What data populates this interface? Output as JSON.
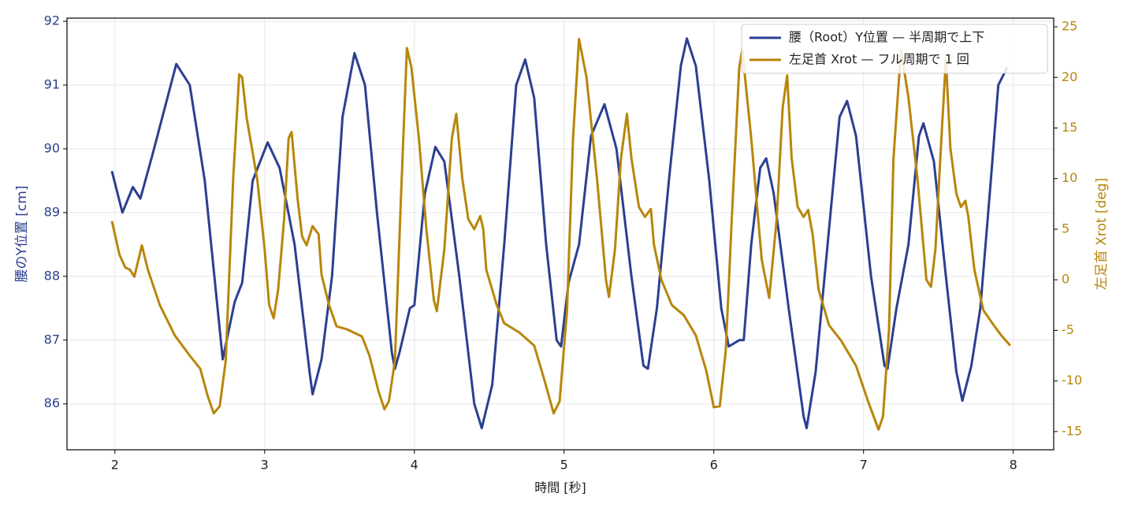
{
  "chart_data": {
    "type": "line",
    "xlabel": "時間 [秒]",
    "ylabel": "腰のY位置 [cm]",
    "y2label": "左足首 Xrot [deg]",
    "xlim": [
      1.68,
      8.27
    ],
    "xticks": [
      2,
      3,
      4,
      5,
      6,
      7,
      8
    ],
    "ylim": [
      85.28,
      92.05
    ],
    "yticks": [
      86,
      87,
      88,
      89,
      90,
      91,
      92
    ],
    "y2lim": [
      -16.8,
      25.86
    ],
    "y2ticks": [
      -15,
      -10,
      -5,
      0,
      5,
      10,
      15,
      20,
      25
    ],
    "grid": true,
    "legend": "upper right",
    "series": [
      {
        "name": "腰（Root）Y位置 — 半周期で上下",
        "color": "#2b3f91",
        "axis": "y",
        "x": [
          1.98,
          2.05,
          2.12,
          2.17,
          2.25,
          2.41,
          2.5,
          2.6,
          2.72,
          2.8,
          2.85,
          2.92,
          3.02,
          3.1,
          3.2,
          3.3,
          3.32,
          3.38,
          3.45,
          3.52,
          3.6,
          3.67,
          3.75,
          3.85,
          3.87,
          3.9,
          3.97,
          4.0,
          4.07,
          4.14,
          4.2,
          4.3,
          4.4,
          4.45,
          4.52,
          4.6,
          4.68,
          4.74,
          4.8,
          4.88,
          4.95,
          4.98,
          5.03,
          5.1,
          5.18,
          5.27,
          5.35,
          5.45,
          5.53,
          5.56,
          5.62,
          5.7,
          5.78,
          5.82,
          5.88,
          5.97,
          6.05,
          6.1,
          6.17,
          6.2,
          6.25,
          6.31,
          6.35,
          6.4,
          6.5,
          6.6,
          6.62,
          6.68,
          6.78,
          6.84,
          6.89,
          6.95,
          7.05,
          7.14,
          7.16,
          7.22,
          7.3,
          7.37,
          7.4,
          7.47,
          7.55,
          7.62,
          7.66,
          7.72,
          7.78,
          7.85,
          7.9,
          7.96
        ],
        "values": [
          89.65,
          89.0,
          89.4,
          89.22,
          89.9,
          91.33,
          91.0,
          89.5,
          86.7,
          87.6,
          87.9,
          89.5,
          90.1,
          89.7,
          88.5,
          86.5,
          86.15,
          86.7,
          88.0,
          90.5,
          91.5,
          91.0,
          89.0,
          86.8,
          86.55,
          86.8,
          87.5,
          87.55,
          89.3,
          90.03,
          89.8,
          88.0,
          86.0,
          85.62,
          86.3,
          88.5,
          91.0,
          91.4,
          90.8,
          88.5,
          87.0,
          86.9,
          87.9,
          88.5,
          90.2,
          90.7,
          90.0,
          88.0,
          86.6,
          86.55,
          87.5,
          89.5,
          91.3,
          91.73,
          91.3,
          89.5,
          87.5,
          86.9,
          87.0,
          87.0,
          88.5,
          89.7,
          89.85,
          89.3,
          87.5,
          85.8,
          85.62,
          86.5,
          89.0,
          90.5,
          90.75,
          90.2,
          88.0,
          86.6,
          86.55,
          87.5,
          88.5,
          90.2,
          90.4,
          89.8,
          88.0,
          86.5,
          86.05,
          86.6,
          87.5,
          89.5,
          91.0,
          91.28
        ]
      },
      {
        "name": "左足首 Xrot — フル周期で 1 回",
        "color": "#b8860b",
        "axis": "y2",
        "x": [
          1.98,
          2.03,
          2.07,
          2.1,
          2.13,
          2.18,
          2.22,
          2.3,
          2.4,
          2.5,
          2.57,
          2.62,
          2.66,
          2.7,
          2.74,
          2.79,
          2.83,
          2.85,
          2.88,
          2.95,
          3.0,
          3.03,
          3.06,
          3.09,
          3.13,
          3.16,
          3.18,
          3.22,
          3.25,
          3.28,
          3.32,
          3.36,
          3.38,
          3.43,
          3.48,
          3.55,
          3.65,
          3.7,
          3.76,
          3.8,
          3.83,
          3.87,
          3.91,
          3.95,
          3.98,
          4.03,
          4.08,
          4.13,
          4.15,
          4.2,
          4.25,
          4.28,
          4.32,
          4.36,
          4.4,
          4.44,
          4.46,
          4.48,
          4.55,
          4.6,
          4.7,
          4.8,
          4.87,
          4.93,
          4.97,
          5.02,
          5.06,
          5.1,
          5.15,
          5.22,
          5.28,
          5.3,
          5.34,
          5.38,
          5.42,
          5.45,
          5.5,
          5.54,
          5.58,
          5.6,
          5.65,
          5.72,
          5.8,
          5.88,
          5.95,
          6.0,
          6.04,
          6.08,
          6.12,
          6.17,
          6.19,
          6.25,
          6.32,
          6.37,
          6.42,
          6.46,
          6.49,
          6.52,
          6.56,
          6.6,
          6.63,
          6.66,
          6.7,
          6.77,
          6.85,
          6.95,
          7.03,
          7.1,
          7.13,
          7.17,
          7.2,
          7.25,
          7.3,
          7.36,
          7.42,
          7.45,
          7.48,
          7.52,
          7.55,
          7.58,
          7.62,
          7.65,
          7.68,
          7.7,
          7.74,
          7.8,
          7.87,
          7.92,
          7.98
        ],
        "values": [
          5.8,
          2.5,
          1.2,
          1.0,
          0.3,
          3.4,
          1.0,
          -2.5,
          -5.5,
          -7.5,
          -8.8,
          -11.5,
          -13.2,
          -12.5,
          -8.0,
          10,
          20.3,
          20,
          16,
          10,
          3,
          -2.5,
          -3.8,
          -1,
          6,
          14,
          14.6,
          8,
          4.3,
          3.4,
          5.3,
          4.5,
          0.5,
          -2.5,
          -4.6,
          -4.9,
          -5.6,
          -7.5,
          -11,
          -12.8,
          -12,
          -8,
          8,
          22.9,
          21,
          14,
          5,
          -2,
          -3.1,
          3,
          14,
          16.4,
          10,
          6,
          5,
          6.3,
          5,
          1,
          -2.5,
          -4.3,
          -5.2,
          -6.5,
          -10,
          -13.2,
          -12,
          -3,
          14,
          23.8,
          20,
          10,
          0,
          -1.7,
          3,
          12,
          16.4,
          12,
          7.2,
          6.2,
          7,
          3.5,
          0,
          -2.5,
          -3.5,
          -5.5,
          -9,
          -12.6,
          -12.5,
          -7,
          6,
          21,
          22.7,
          14,
          2,
          -1.8,
          6,
          17,
          20.2,
          12,
          7.2,
          6.2,
          6.9,
          4.5,
          -1,
          -4.5,
          -6,
          -8.5,
          -12,
          -14.8,
          -13.5,
          -5,
          12,
          22.7,
          18,
          10,
          0,
          -0.7,
          3,
          14,
          21.8,
          13,
          8.5,
          7.2,
          7.8,
          6.2,
          1,
          -3,
          -4.5,
          -5.5,
          -6.5
        ]
      }
    ]
  }
}
